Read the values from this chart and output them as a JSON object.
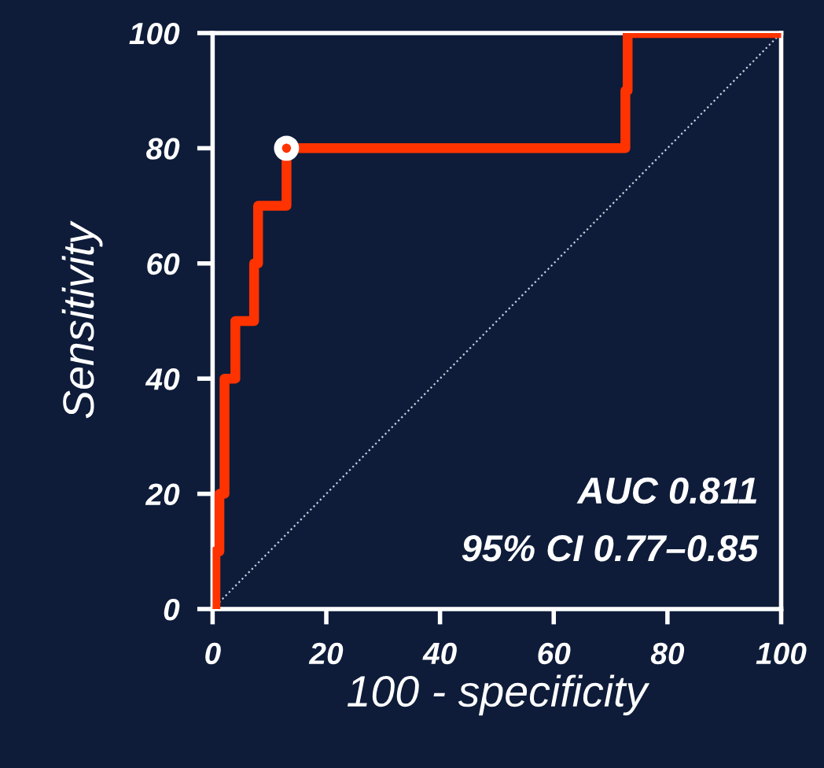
{
  "chart_data": {
    "type": "line",
    "xlabel": "100 - specificity",
    "ylabel": "Sensitivity",
    "xlim": [
      0,
      100
    ],
    "ylim": [
      0,
      100
    ],
    "xticks": [
      0,
      20,
      40,
      60,
      80,
      100
    ],
    "yticks": [
      0,
      20,
      40,
      60,
      80,
      100
    ],
    "grid": false,
    "legend": false,
    "series": [
      {
        "color": "#ff3300",
        "line_style": "solid",
        "marker": "none",
        "x": [
          0.5,
          0.5,
          1.2,
          1.2,
          2.1,
          2.1,
          4,
          4,
          7.3,
          7.3,
          8,
          8,
          13,
          13,
          72.6,
          72.6,
          73,
          73,
          100
        ],
        "values": [
          0,
          10,
          10,
          20,
          20,
          40,
          40,
          50,
          50,
          60,
          60,
          70,
          70,
          80,
          80,
          90,
          90,
          100,
          100
        ]
      },
      {
        "color": "#c8d0e0",
        "line_style": "dotted",
        "marker": "none",
        "x": [
          0,
          100
        ],
        "values": [
          0,
          100
        ]
      },
      {
        "type": "scatter",
        "color": "#ffffff",
        "marker": "circle",
        "x": [
          13
        ],
        "values": [
          80
        ]
      }
    ],
    "annotations": [
      "AUC 0.811",
      "95% CI 0.77–0.85"
    ]
  }
}
